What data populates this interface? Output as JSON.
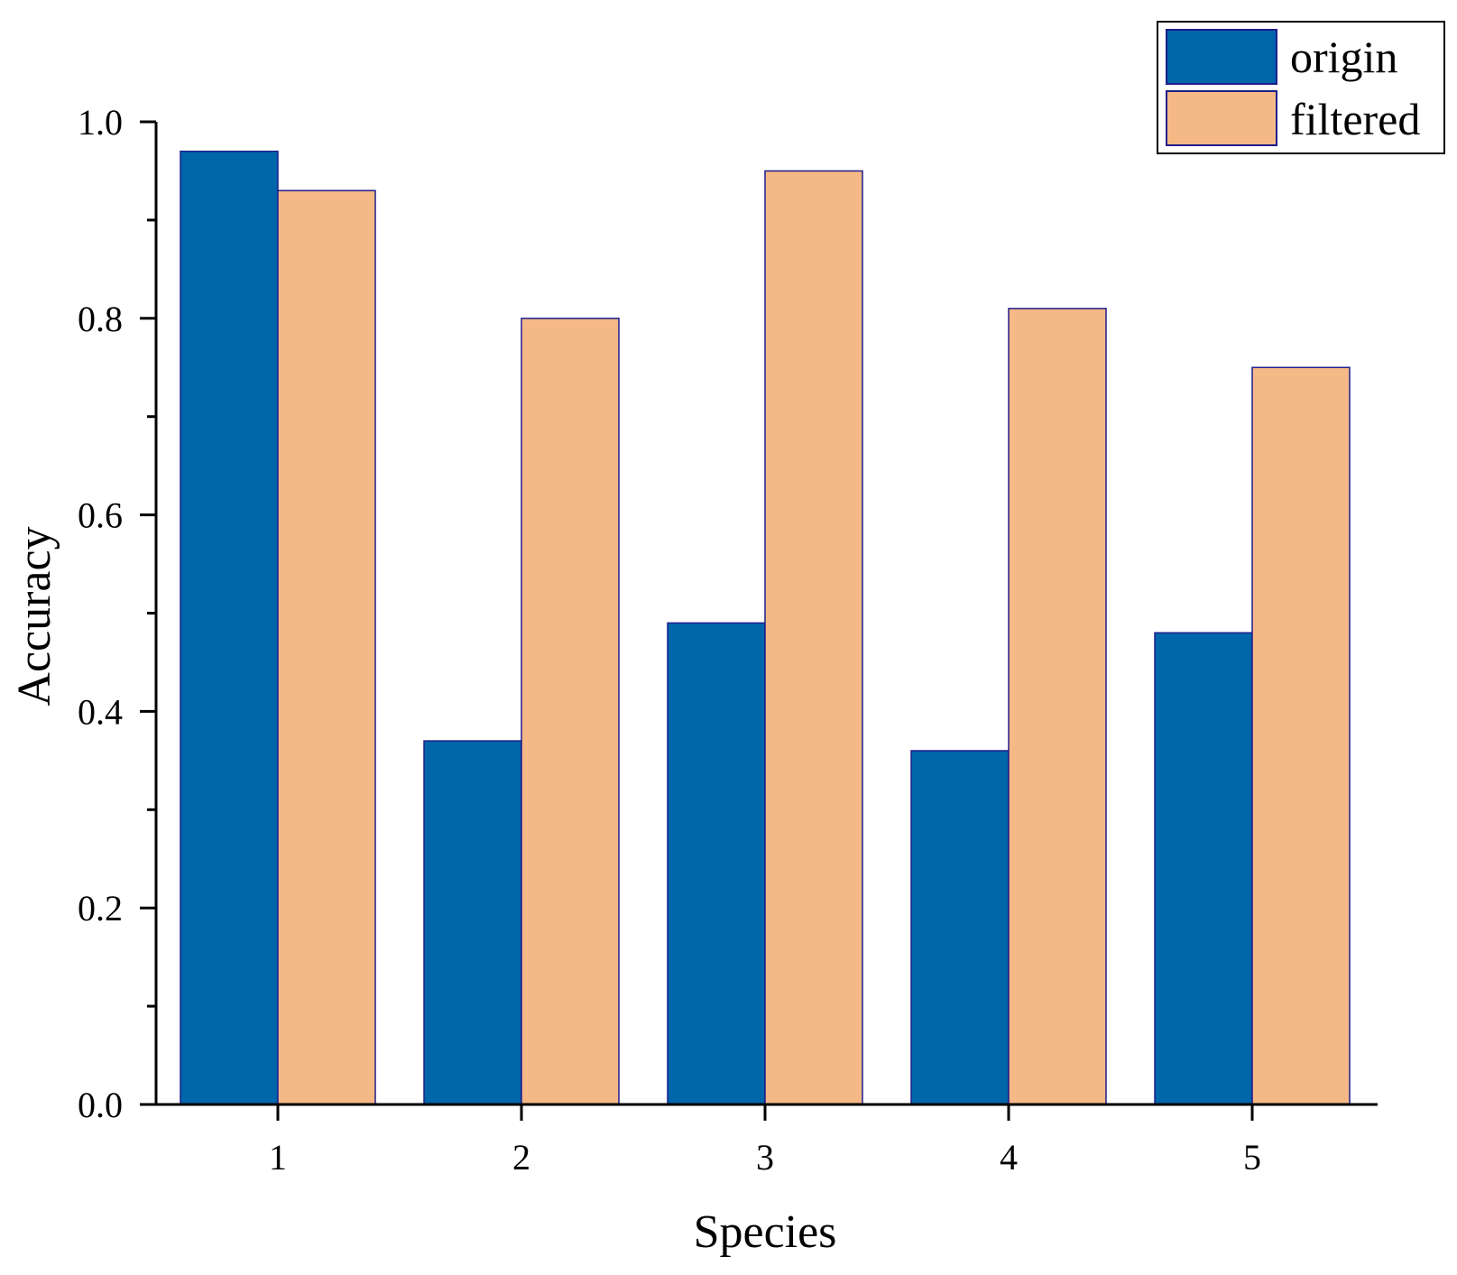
{
  "colors": {
    "origin": "#0066AA",
    "filtered": "#F5B887",
    "bar_edge": "#1E1E8C",
    "axis": "#000000"
  },
  "chart_data": {
    "type": "bar",
    "title": "",
    "xlabel": "Species",
    "ylabel": "Accuracy",
    "categories": [
      "1",
      "2",
      "3",
      "4",
      "5"
    ],
    "ylim": [
      0,
      1.0
    ],
    "yticks": [
      {
        "value": 0.0,
        "label": "0.0"
      },
      {
        "value": 0.2,
        "label": "0.2"
      },
      {
        "value": 0.4,
        "label": "0.4"
      },
      {
        "value": 0.6,
        "label": "0.6"
      },
      {
        "value": 0.8,
        "label": "0.8"
      },
      {
        "value": 1.0,
        "label": "1.0"
      }
    ],
    "minor_yticks": [
      0.1,
      0.3,
      0.5,
      0.7,
      0.9
    ],
    "legend_position": "top-right",
    "grid": false,
    "series": [
      {
        "name": "origin",
        "values": [
          0.97,
          0.37,
          0.49,
          0.36,
          0.48
        ]
      },
      {
        "name": "filtered",
        "values": [
          0.93,
          0.8,
          0.95,
          0.81,
          0.75
        ]
      }
    ]
  }
}
